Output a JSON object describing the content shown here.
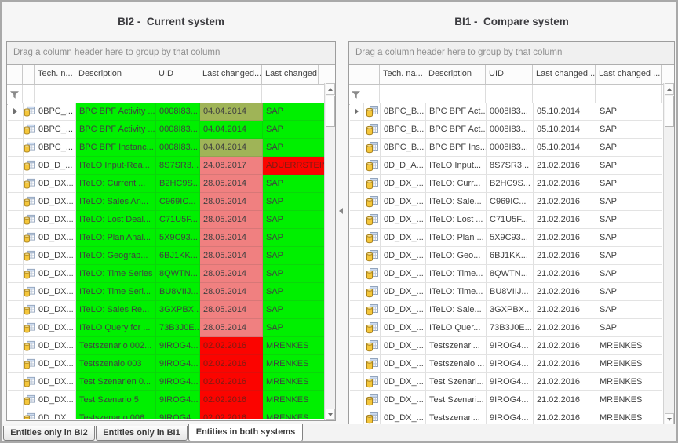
{
  "window": {
    "tabs": [
      {
        "label": "Entities only in BI2",
        "active": false
      },
      {
        "label": "Entities only in BI1",
        "active": false
      },
      {
        "label": "Entities in both systems",
        "active": true
      }
    ]
  },
  "colors": {
    "match_green": "#00f000",
    "diff_olive": "#9fb457",
    "diff_salmon": "#f08080",
    "diff_red": "#fb0400",
    "red_cell_text": "#7a1d14",
    "cell_text": "#404040"
  },
  "left_panel": {
    "title": "BI2 -  Current system",
    "group_hint": "Drag a column header here to group by that column",
    "columns": [
      "Tech. n...",
      "Description",
      "UID",
      "Last changed...",
      "Last changed by"
    ],
    "rows": [
      {
        "focused": true,
        "cells": [
          "0BPC_...",
          "BPC BPF Activity ...",
          "0008I83...",
          "04.04.2014",
          "SAP"
        ],
        "tints": [
          "g",
          "g",
          "o",
          "g"
        ]
      },
      {
        "focused": false,
        "cells": [
          "0BPC_...",
          "BPC BPF Activity ...",
          "0008I83...",
          "04.04.2014",
          "SAP"
        ],
        "tints": [
          "g",
          "g",
          "g",
          "g"
        ]
      },
      {
        "focused": false,
        "cells": [
          "0BPC_...",
          "BPC BPF Instanc...",
          "0008I83...",
          "04.04.2014",
          "SAP"
        ],
        "tints": [
          "g",
          "g",
          "o",
          "g"
        ]
      },
      {
        "focused": false,
        "cells": [
          "0D_D_...",
          "ITeLO Input-Rea...",
          "8S7SR3...",
          "24.08.2017",
          "ADUERRSTEIN"
        ],
        "tints": [
          "g",
          "g",
          "s",
          "r"
        ]
      },
      {
        "focused": false,
        "cells": [
          "0D_DX...",
          "ITeLO: Current ...",
          "B2HC9S...",
          "28.05.2014",
          "SAP"
        ],
        "tints": [
          "g",
          "g",
          "s",
          "g"
        ]
      },
      {
        "focused": false,
        "cells": [
          "0D_DX...",
          "ITeLO: Sales An...",
          "C969IC...",
          "28.05.2014",
          "SAP"
        ],
        "tints": [
          "g",
          "g",
          "s",
          "g"
        ]
      },
      {
        "focused": false,
        "cells": [
          "0D_DX...",
          "ITeLO: Lost Deal...",
          "C71U5F...",
          "28.05.2014",
          "SAP"
        ],
        "tints": [
          "g",
          "g",
          "s",
          "g"
        ]
      },
      {
        "focused": false,
        "cells": [
          "0D_DX...",
          "ITeLO: Plan Anal...",
          "5X9C93...",
          "28.05.2014",
          "SAP"
        ],
        "tints": [
          "g",
          "g",
          "s",
          "g"
        ]
      },
      {
        "focused": false,
        "cells": [
          "0D_DX...",
          "ITeLO: Geograp...",
          "6BJ1KK...",
          "28.05.2014",
          "SAP"
        ],
        "tints": [
          "g",
          "g",
          "s",
          "g"
        ]
      },
      {
        "focused": false,
        "cells": [
          "0D_DX...",
          "ITeLO: Time Series",
          "8QWTN...",
          "28.05.2014",
          "SAP"
        ],
        "tints": [
          "g",
          "g",
          "s",
          "g"
        ]
      },
      {
        "focused": false,
        "cells": [
          "0D_DX...",
          "ITeLO: Time Seri...",
          "BU8VIIJ...",
          "28.05.2014",
          "SAP"
        ],
        "tints": [
          "g",
          "g",
          "s",
          "g"
        ]
      },
      {
        "focused": false,
        "cells": [
          "0D_DX...",
          "ITeLO: Sales Re...",
          "3GXPBX...",
          "28.05.2014",
          "SAP"
        ],
        "tints": [
          "g",
          "g",
          "s",
          "g"
        ]
      },
      {
        "focused": false,
        "cells": [
          "0D_DX...",
          "ITeLO Query for ...",
          "73B3J0E...",
          "28.05.2014",
          "SAP"
        ],
        "tints": [
          "g",
          "g",
          "s",
          "g"
        ]
      },
      {
        "focused": false,
        "cells": [
          "0D_DX...",
          "Testszenario 002...",
          "9IROG4...",
          "02.02.2016",
          "MRENKES"
        ],
        "tints": [
          "g",
          "g",
          "r",
          "g"
        ]
      },
      {
        "focused": false,
        "cells": [
          "0D_DX...",
          "Testszenaio 003",
          "9IROG4...",
          "02.02.2016",
          "MRENKES"
        ],
        "tints": [
          "g",
          "g",
          "r",
          "g"
        ]
      },
      {
        "focused": false,
        "cells": [
          "0D_DX...",
          "Test Szenarien 0...",
          "9IROG4...",
          "02.02.2016",
          "MRENKES"
        ],
        "tints": [
          "g",
          "g",
          "r",
          "g"
        ]
      },
      {
        "focused": false,
        "cells": [
          "0D_DX...",
          "Test Szenario 5",
          "9IROG4...",
          "02.02.2016",
          "MRENKES"
        ],
        "tints": [
          "g",
          "g",
          "r",
          "g"
        ]
      },
      {
        "focused": false,
        "cells": [
          "0D_DX...",
          "Testszenario 006",
          "9IROG4...",
          "02.02.2016",
          "MRENKES"
        ],
        "tints": [
          "g",
          "g",
          "r",
          "g"
        ]
      }
    ]
  },
  "right_panel": {
    "title": "BI1 -  Compare system",
    "group_hint": "Drag a column header here to group by that column",
    "columns": [
      "Tech. na...",
      "Description",
      "UID",
      "Last changed...",
      "Last changed ..."
    ],
    "rows": [
      {
        "focused": true,
        "cells": [
          "0BPC_B...",
          "BPC BPF Act...",
          "0008I83...",
          "05.10.2014",
          "SAP"
        ],
        "tints": [
          "w",
          "w",
          "w",
          "w"
        ]
      },
      {
        "focused": false,
        "cells": [
          "0BPC_B...",
          "BPC BPF Act...",
          "0008I83...",
          "05.10.2014",
          "SAP"
        ],
        "tints": [
          "w",
          "w",
          "w",
          "w"
        ]
      },
      {
        "focused": false,
        "cells": [
          "0BPC_B...",
          "BPC BPF Ins...",
          "0008I83...",
          "05.10.2014",
          "SAP"
        ],
        "tints": [
          "w",
          "w",
          "w",
          "w"
        ]
      },
      {
        "focused": false,
        "cells": [
          "0D_D_A...",
          "ITeLO Input...",
          "8S7SR3...",
          "21.02.2016",
          "SAP"
        ],
        "tints": [
          "w",
          "w",
          "w",
          "w"
        ]
      },
      {
        "focused": false,
        "cells": [
          "0D_DX_...",
          "ITeLO: Curr...",
          "B2HC9S...",
          "21.02.2016",
          "SAP"
        ],
        "tints": [
          "w",
          "w",
          "w",
          "w"
        ]
      },
      {
        "focused": false,
        "cells": [
          "0D_DX_...",
          "ITeLO: Sale...",
          "C969IC...",
          "21.02.2016",
          "SAP"
        ],
        "tints": [
          "w",
          "w",
          "w",
          "w"
        ]
      },
      {
        "focused": false,
        "cells": [
          "0D_DX_...",
          "ITeLO: Lost ...",
          "C71U5F...",
          "21.02.2016",
          "SAP"
        ],
        "tints": [
          "w",
          "w",
          "w",
          "w"
        ]
      },
      {
        "focused": false,
        "cells": [
          "0D_DX_...",
          "ITeLO: Plan ...",
          "5X9C93...",
          "21.02.2016",
          "SAP"
        ],
        "tints": [
          "w",
          "w",
          "w",
          "w"
        ]
      },
      {
        "focused": false,
        "cells": [
          "0D_DX_...",
          "ITeLO: Geo...",
          "6BJ1KK...",
          "21.02.2016",
          "SAP"
        ],
        "tints": [
          "w",
          "w",
          "w",
          "w"
        ]
      },
      {
        "focused": false,
        "cells": [
          "0D_DX_...",
          "ITeLO: Time...",
          "8QWTN...",
          "21.02.2016",
          "SAP"
        ],
        "tints": [
          "w",
          "w",
          "w",
          "w"
        ]
      },
      {
        "focused": false,
        "cells": [
          "0D_DX_...",
          "ITeLO: Time...",
          "BU8VIIJ...",
          "21.02.2016",
          "SAP"
        ],
        "tints": [
          "w",
          "w",
          "w",
          "w"
        ]
      },
      {
        "focused": false,
        "cells": [
          "0D_DX_...",
          "ITeLO: Sale...",
          "3GXPBX...",
          "21.02.2016",
          "SAP"
        ],
        "tints": [
          "w",
          "w",
          "w",
          "w"
        ]
      },
      {
        "focused": false,
        "cells": [
          "0D_DX_...",
          "ITeLO Quer...",
          "73B3J0E...",
          "21.02.2016",
          "SAP"
        ],
        "tints": [
          "w",
          "w",
          "w",
          "w"
        ]
      },
      {
        "focused": false,
        "cells": [
          "0D_DX_...",
          "Testszenari...",
          "9IROG4...",
          "21.02.2016",
          "MRENKES"
        ],
        "tints": [
          "w",
          "w",
          "w",
          "w"
        ]
      },
      {
        "focused": false,
        "cells": [
          "0D_DX_...",
          "Testszenaio ...",
          "9IROG4...",
          "21.02.2016",
          "MRENKES"
        ],
        "tints": [
          "w",
          "w",
          "w",
          "w"
        ]
      },
      {
        "focused": false,
        "cells": [
          "0D_DX_...",
          "Test Szenari...",
          "9IROG4...",
          "21.02.2016",
          "MRENKES"
        ],
        "tints": [
          "w",
          "w",
          "w",
          "w"
        ]
      },
      {
        "focused": false,
        "cells": [
          "0D_DX_...",
          "Test Szenari...",
          "9IROG4...",
          "21.02.2016",
          "MRENKES"
        ],
        "tints": [
          "w",
          "w",
          "w",
          "w"
        ]
      },
      {
        "focused": false,
        "cells": [
          "0D_DX_...",
          "Testszenari...",
          "9IROG4...",
          "21.02.2016",
          "MRENKES"
        ],
        "tints": [
          "w",
          "w",
          "w",
          "w"
        ]
      }
    ]
  }
}
